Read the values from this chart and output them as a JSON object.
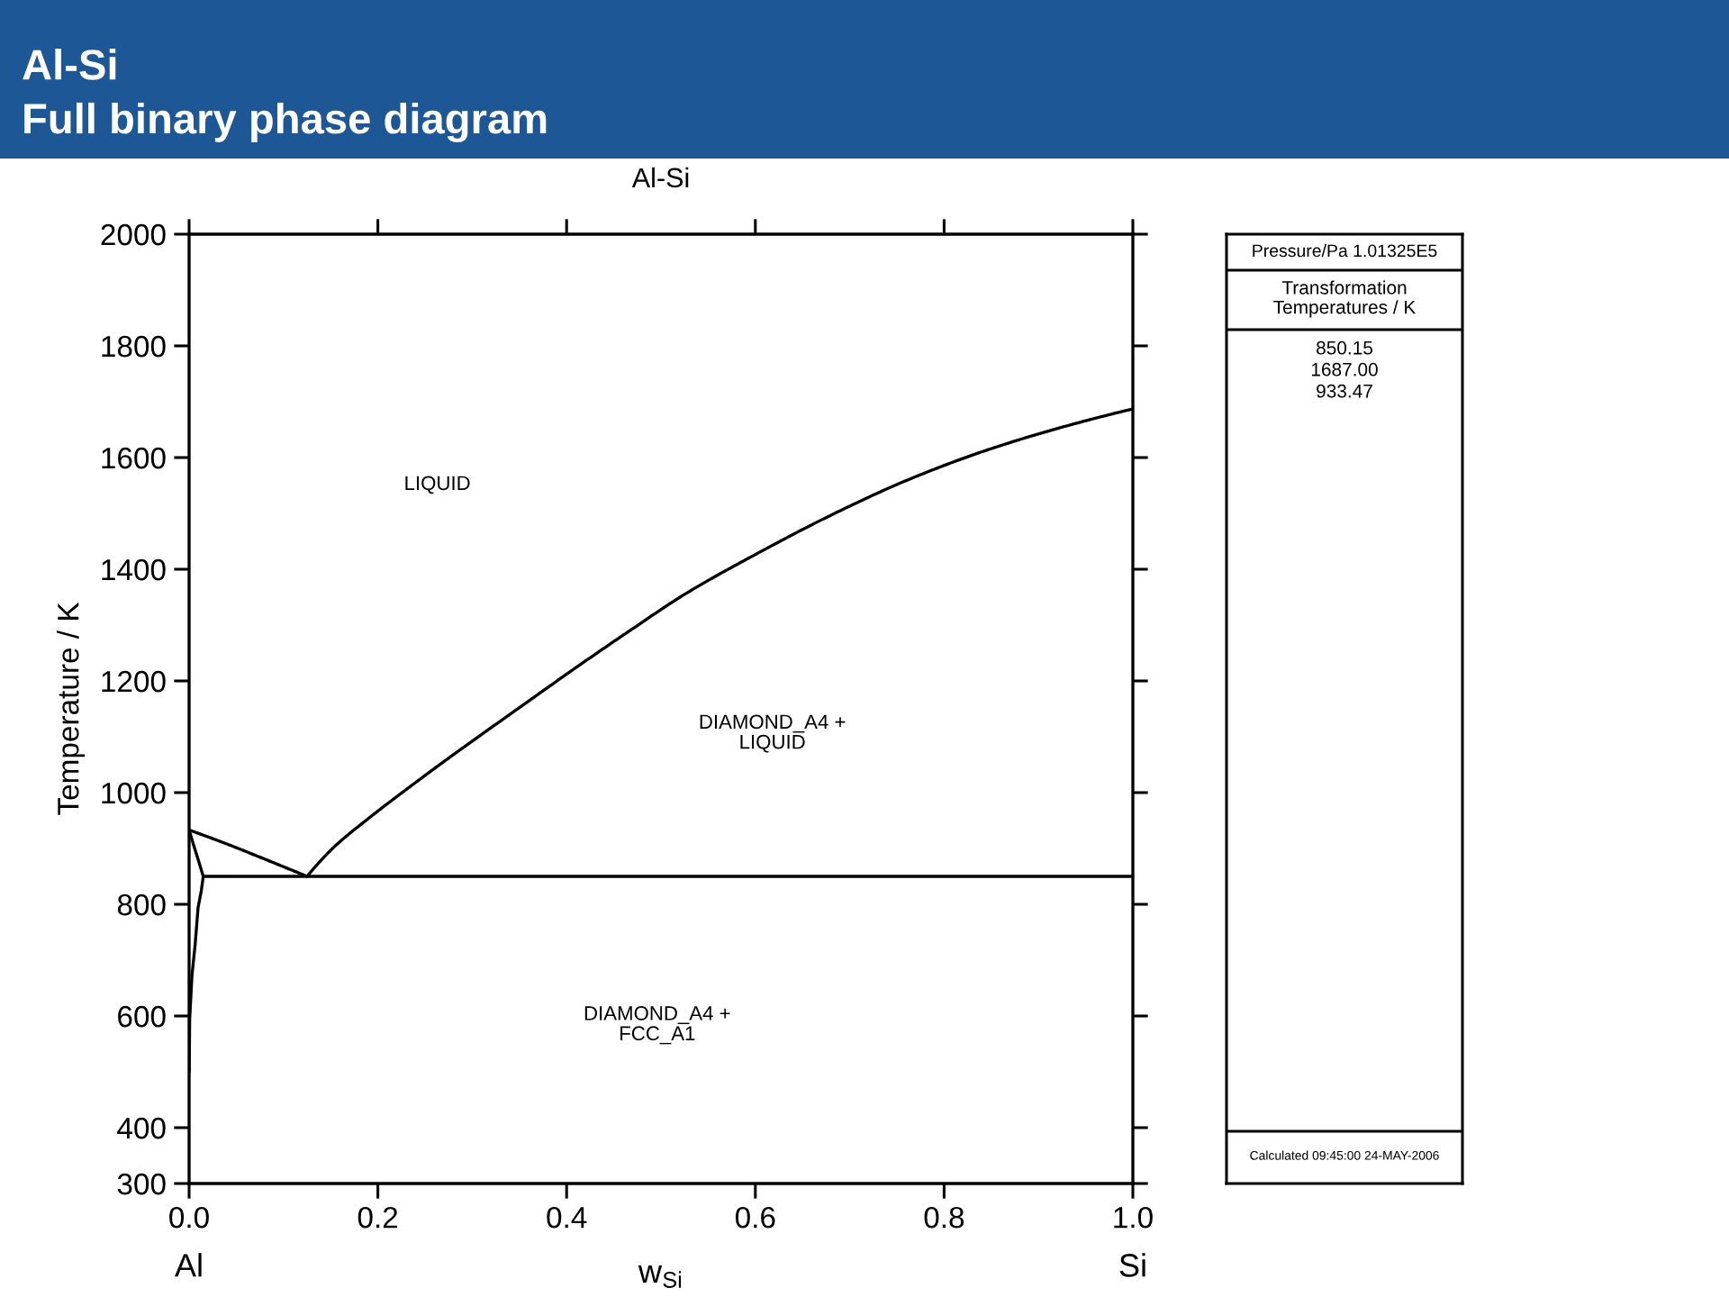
{
  "chart_data": [
    {
      "type": "line",
      "title": "Al-Si",
      "subtitle": "Full binary phase diagram",
      "xlabel": "w$_{Si}$",
      "ylabel": "Temperature / K",
      "xlim": [
        0,
        1
      ],
      "ylim": [
        300,
        2000
      ],
      "xticks": [
        {
          "value": 0,
          "label": "0.0"
        },
        0.2,
        0.4,
        0.6,
        0.8,
        {
          "value": 1,
          "label": "1.0"
        }
      ],
      "yticks": [
        300,
        400,
        600,
        800,
        1000,
        1200,
        1400,
        1600,
        1800,
        2000
      ],
      "series": [
        {
          "color": "#000000",
          "x": [
            0.125,
            0.152,
            0.191,
            0.232,
            0.276,
            0.324,
            0.369,
            0.41,
            0.467,
            0.525,
            0.604,
            0.684,
            0.763,
            0.843,
            0.922,
            1.0
          ],
          "values": [
            850,
            900,
            955,
            1008,
            1063,
            1121,
            1175,
            1224,
            1290,
            1355,
            1430,
            1500,
            1561,
            1612,
            1653,
            1687
          ]
        },
        {
          "color": "#000000",
          "x": [
            0,
            0.04,
            0.08,
            0.125
          ],
          "values": [
            933,
            908,
            881,
            850
          ]
        },
        {
          "color": "#000000",
          "x": [
            0,
            0.005,
            0.01,
            0.015,
            0.013,
            0.0095,
            0.0064,
            0.003,
            0.0006,
            0.0001
          ],
          "values": [
            933,
            905,
            878,
            850,
            825,
            794,
            728,
            672,
            594,
            500
          ]
        },
        {
          "color": "#000000",
          "x": [
            0.015,
            1.0
          ],
          "values": [
            850,
            850
          ]
        }
      ],
      "annotations": [
        "Al-Si",
        "LIQUID",
        "DIAMOND_A4 +\nLIQUID",
        "DIAMOND_A4 +\nFCC_A1",
        "Al",
        "Si"
      ]
    },
    {
      "type": "other",
      "title": "Pressure/Pa 1.01325E5",
      "subtitle": "Transformation\nTemperatures / K",
      "annotations": [
        "850.15",
        "1687.00",
        "933.47",
        "Calculated 09:45:00 24-MAY-2006"
      ]
    }
  ]
}
